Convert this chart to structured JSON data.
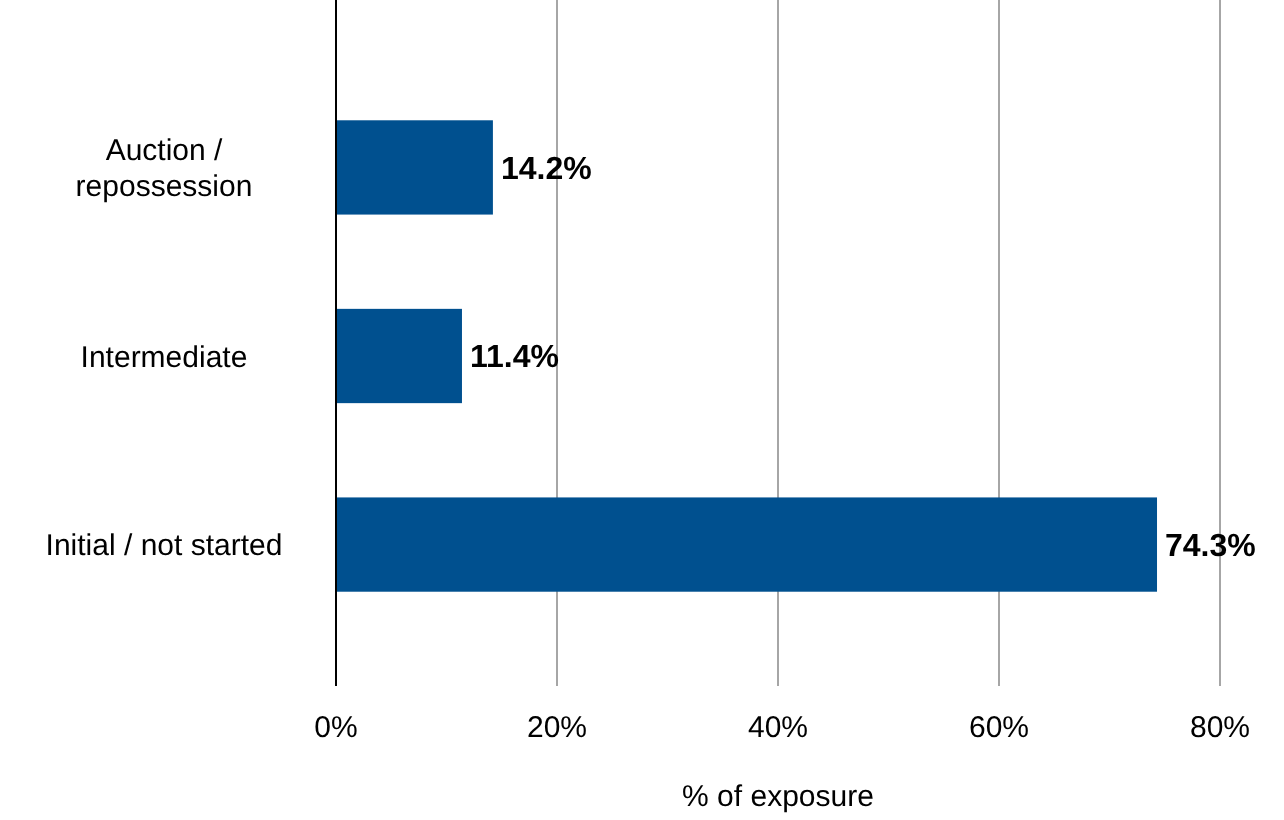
{
  "chart_data": {
    "type": "bar",
    "orientation": "horizontal",
    "xlabel": "% of exposure",
    "categories": [
      "Auction / repossession",
      "Intermediate",
      "Initial / not started"
    ],
    "values": [
      14.2,
      11.4,
      74.3
    ],
    "value_labels": [
      "14.2%",
      "11.4%",
      "74.3%"
    ],
    "color": "#00508f",
    "xlim": [
      0,
      80
    ],
    "xticks": [
      {
        "value": 0,
        "label": "0%"
      },
      {
        "value": 20,
        "label": "20%"
      },
      {
        "value": 40,
        "label": "40%"
      },
      {
        "value": 60,
        "label": "60%"
      },
      {
        "value": 80,
        "label": "80%"
      }
    ],
    "grid": "x"
  }
}
